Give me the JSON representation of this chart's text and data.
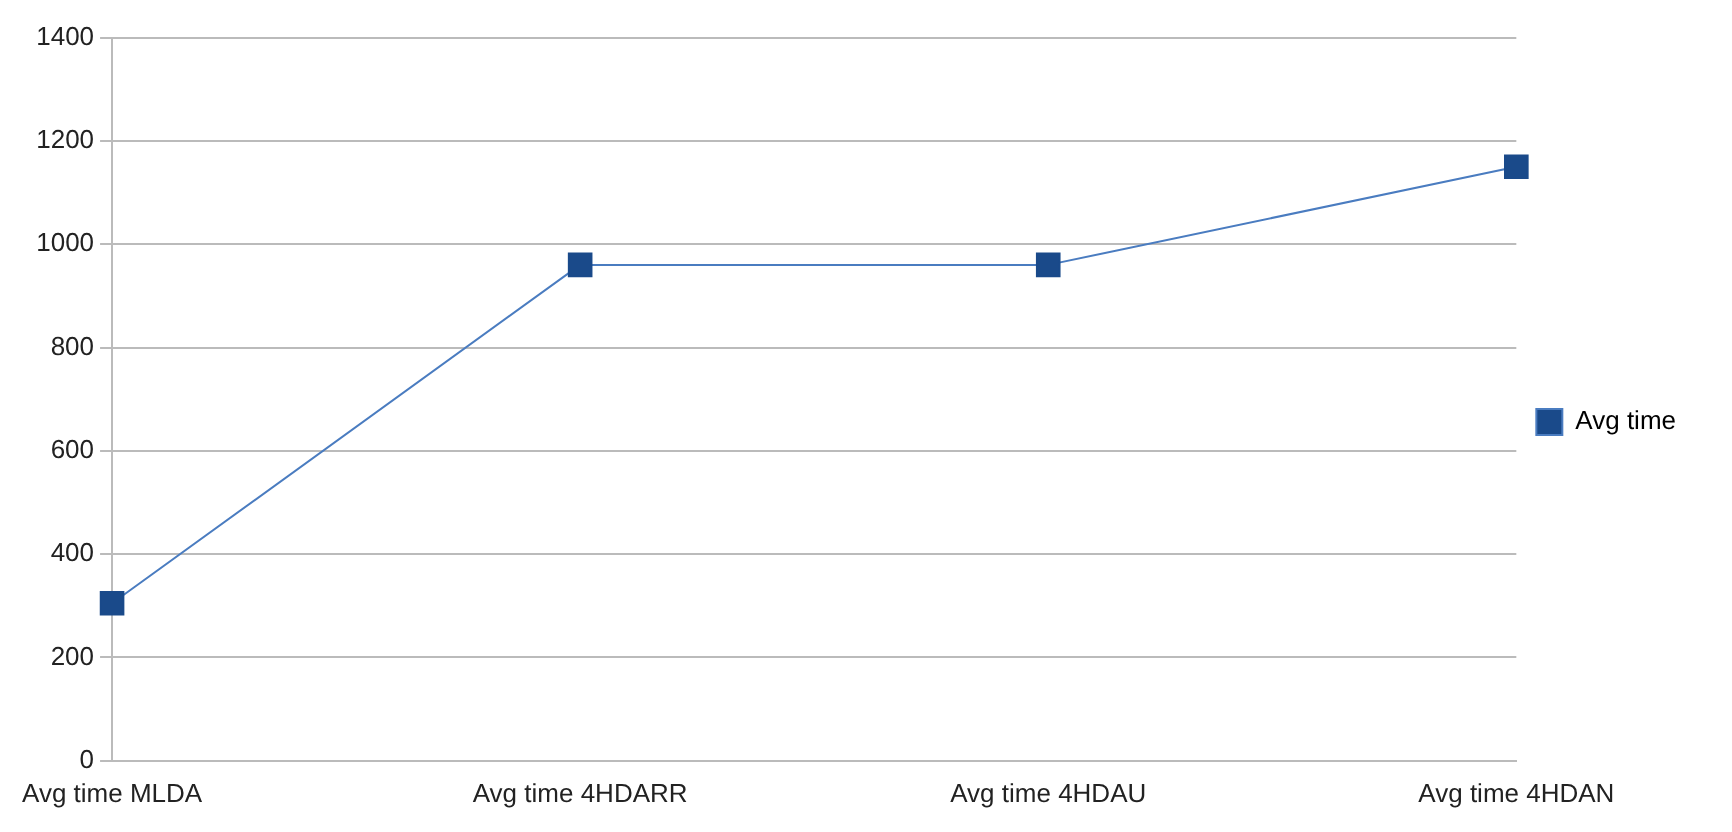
{
  "chart_data": {
    "type": "line",
    "categories": [
      "Avg time MLDA",
      "Avg time 4HDARR",
      "Avg time 4HDAU",
      "Avg time 4HDAN"
    ],
    "series": [
      {
        "name": "Avg time",
        "color": "#1a4a8a",
        "values": [
          305,
          960,
          960,
          1150
        ]
      }
    ],
    "ylim": [
      0,
      1400
    ],
    "yticks": [
      0,
      200,
      400,
      600,
      800,
      1000,
      1200,
      1400
    ],
    "grid": "y",
    "legend": "right",
    "marker": "square",
    "line_style": "solid"
  }
}
